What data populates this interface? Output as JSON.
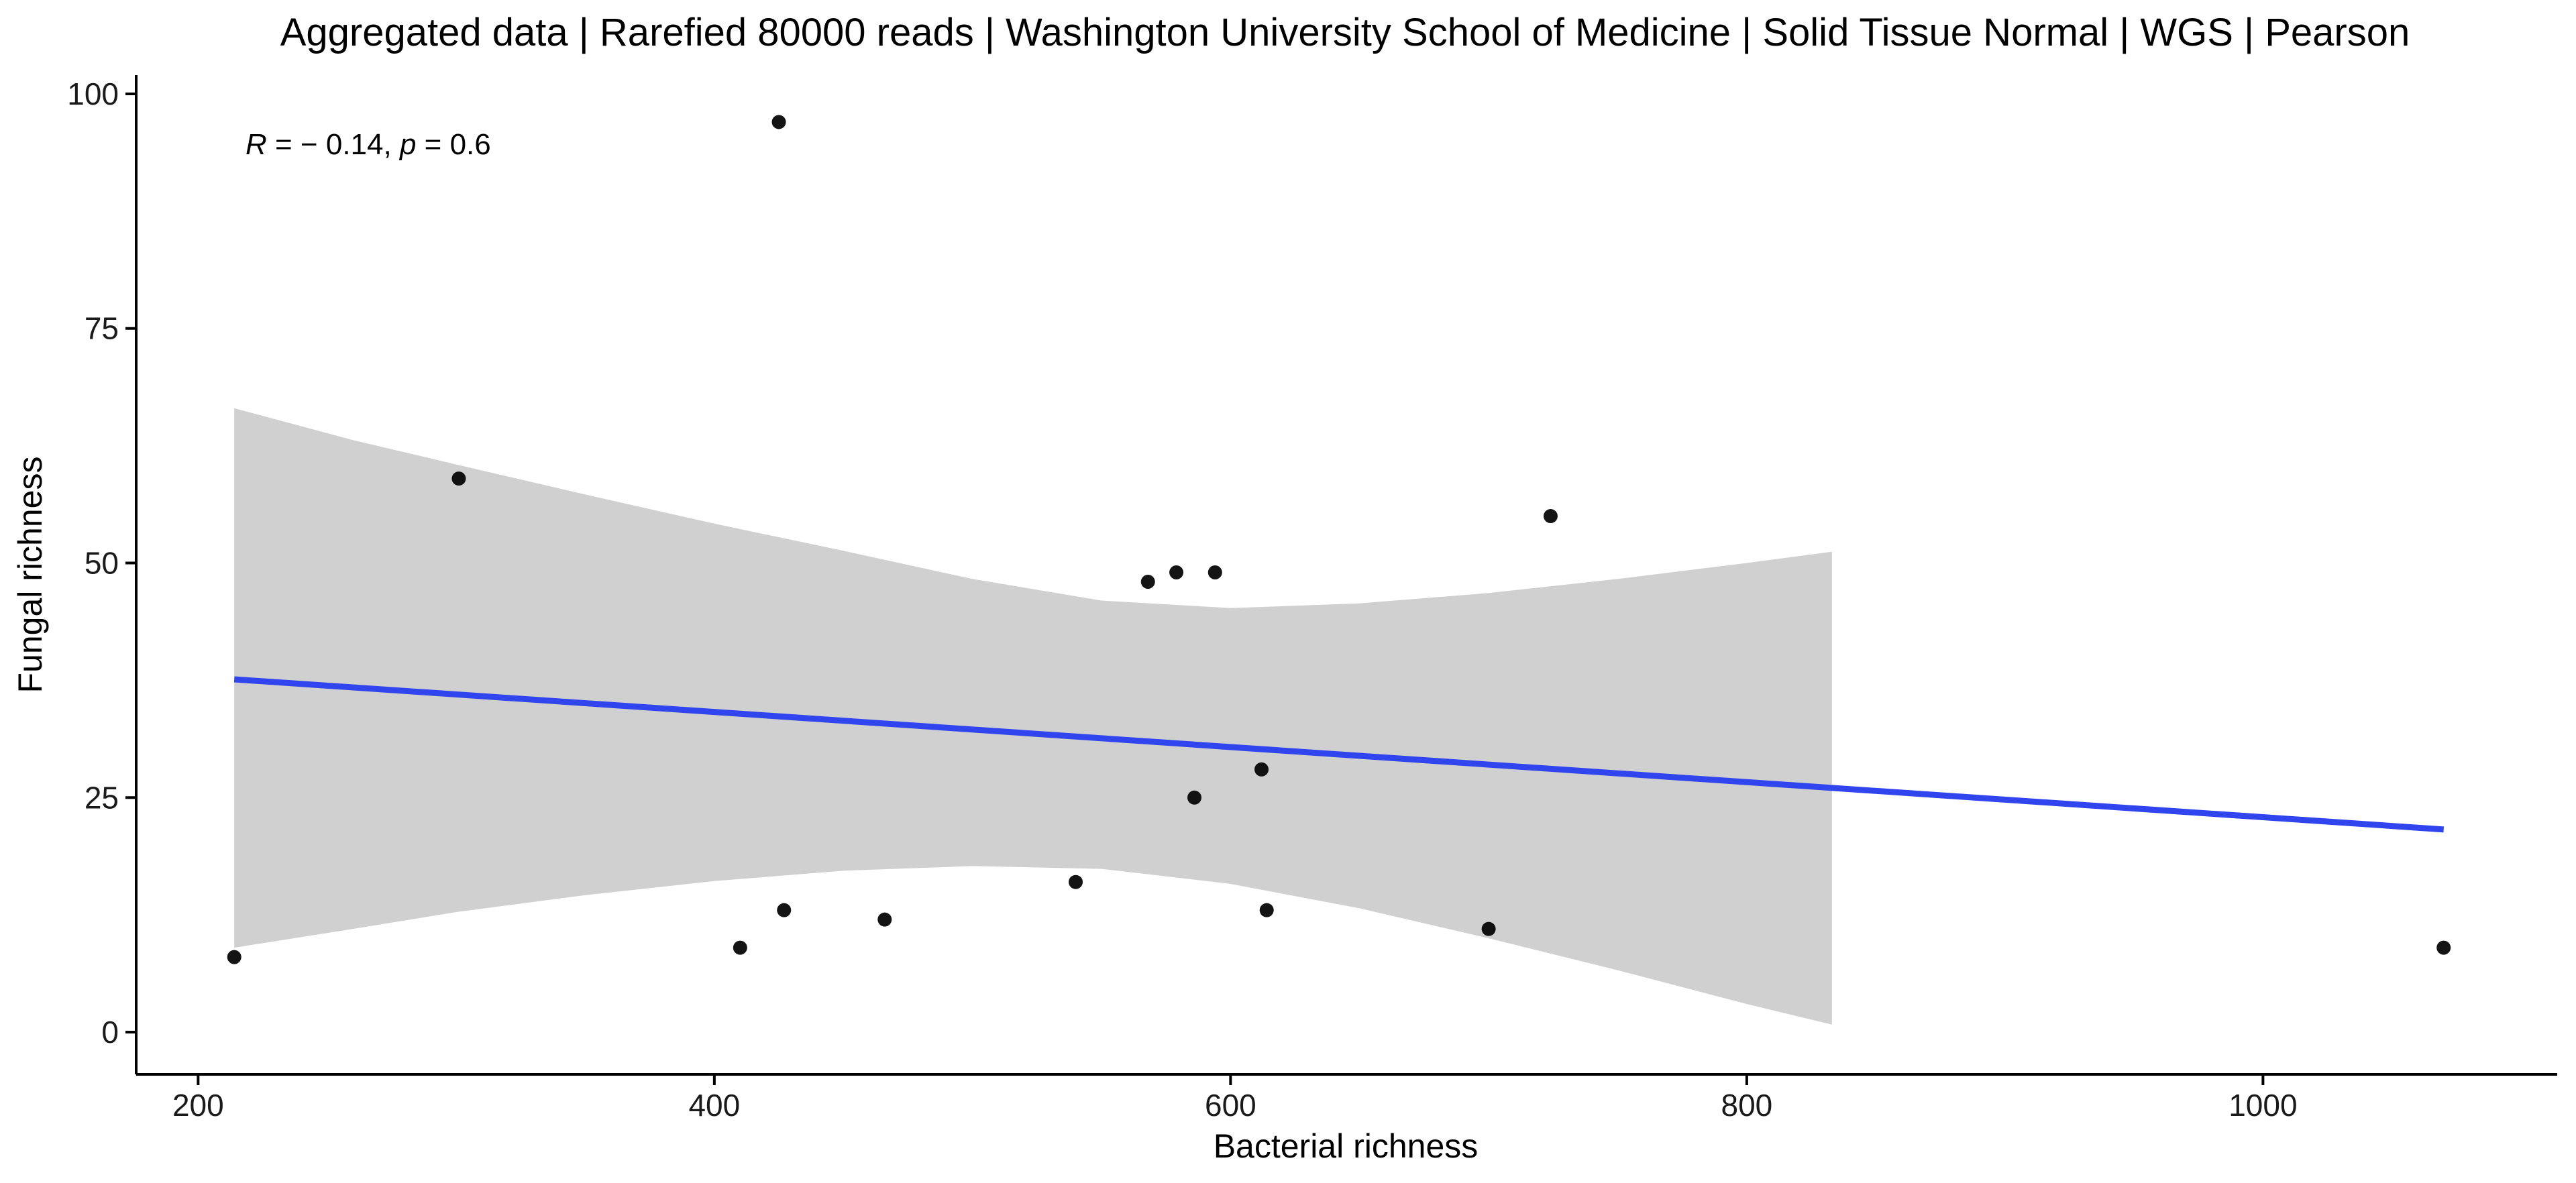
{
  "chart_data": {
    "type": "scatter",
    "title": "Aggregated data | Rarefied 80000 reads | Washington University School of Medicine | Solid Tissue Normal | WGS | Pearson",
    "xlabel": "Bacterial richness",
    "ylabel": "Fungal richness",
    "xlim": [
      176,
      1114
    ],
    "ylim": [
      -4.5,
      102
    ],
    "xticks": [
      200,
      400,
      600,
      800,
      1000
    ],
    "yticks": [
      0,
      25,
      50,
      75,
      100
    ],
    "grid": false,
    "legend": "none",
    "stat_label": {
      "r_symbol": "R",
      "r_text": " = − 0.14, ",
      "p_symbol": "p",
      "p_text": " = 0.6"
    },
    "points": [
      {
        "x": 214,
        "y": 8
      },
      {
        "x": 301,
        "y": 59
      },
      {
        "x": 410,
        "y": 9
      },
      {
        "x": 425,
        "y": 97
      },
      {
        "x": 427,
        "y": 13
      },
      {
        "x": 466,
        "y": 12
      },
      {
        "x": 540,
        "y": 16
      },
      {
        "x": 568,
        "y": 48
      },
      {
        "x": 579,
        "y": 49
      },
      {
        "x": 586,
        "y": 25
      },
      {
        "x": 594,
        "y": 49
      },
      {
        "x": 612,
        "y": 28
      },
      {
        "x": 614,
        "y": 13
      },
      {
        "x": 700,
        "y": 11
      },
      {
        "x": 724,
        "y": 55
      },
      {
        "x": 1070,
        "y": 9
      }
    ],
    "fit_line": {
      "x": [
        214,
        1070
      ],
      "y": [
        37.6,
        21.6
      ],
      "color": "#3145ef"
    },
    "confidence_band": {
      "color": "#d0d0d0",
      "x": [
        214,
        260,
        300,
        350,
        400,
        450,
        500,
        550,
        600,
        650,
        700,
        750,
        800,
        833
      ],
      "lower": [
        9.0,
        11.0,
        12.8,
        14.6,
        16.1,
        17.2,
        17.7,
        17.4,
        15.8,
        13.2,
        10.0,
        6.6,
        3.0,
        0.8
      ],
      "upper": [
        66.5,
        63.1,
        60.5,
        57.3,
        54.2,
        51.3,
        48.3,
        46.0,
        45.2,
        45.7,
        46.8,
        48.3,
        50.0,
        51.2
      ]
    },
    "point_color": "#000000"
  }
}
